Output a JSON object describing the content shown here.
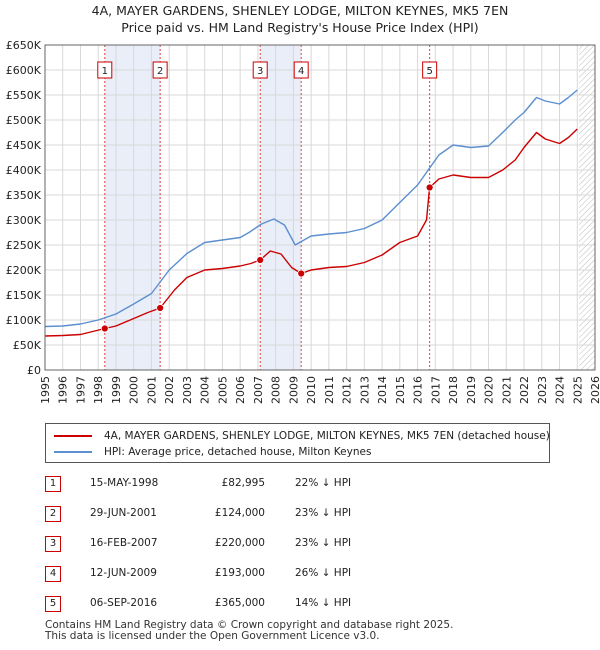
{
  "title_line1": "4A, MAYER GARDENS, SHENLEY LODGE, MILTON KEYNES, MK5 7EN",
  "title_line2": "Price paid vs. HM Land Registry's House Price Index (HPI)",
  "chart_data": {
    "type": "line",
    "title": "4A, MAYER GARDENS, SHENLEY LODGE, MILTON KEYNES, MK5 7EN — Price paid vs. HM Land Registry's House Price Index (HPI)",
    "xlabel": "",
    "ylabel": "",
    "xlim": [
      1995,
      2026
    ],
    "ylim": [
      0,
      650000
    ],
    "y_ticks": [
      0,
      50000,
      100000,
      150000,
      200000,
      250000,
      300000,
      350000,
      400000,
      450000,
      500000,
      550000,
      600000,
      650000
    ],
    "y_tick_labels": [
      "£0",
      "£50K",
      "£100K",
      "£150K",
      "£200K",
      "£250K",
      "£300K",
      "£350K",
      "£400K",
      "£450K",
      "£500K",
      "£550K",
      "£600K",
      "£650K"
    ],
    "x_ticks": [
      1995,
      1996,
      1997,
      1998,
      1999,
      2000,
      2001,
      2002,
      2003,
      2004,
      2005,
      2006,
      2007,
      2008,
      2009,
      2010,
      2011,
      2012,
      2013,
      2014,
      2015,
      2016,
      2017,
      2018,
      2019,
      2020,
      2021,
      2022,
      2023,
      2024,
      2025,
      2026
    ],
    "grid": true,
    "series": [
      {
        "name": "4A, MAYER GARDENS, SHENLEY LODGE, MILTON KEYNES, MK5 7EN (detached house)",
        "color": "#cc0000",
        "x": [
          1995.0,
          1996.0,
          1997.0,
          1997.8,
          1998.37,
          1999.0,
          2000.0,
          2000.8,
          2001.49,
          2002.3,
          2003.0,
          2004.0,
          2005.0,
          2006.0,
          2006.6,
          2007.13,
          2007.7,
          2008.3,
          2008.9,
          2009.44,
          2010.0,
          2011.0,
          2012.0,
          2013.0,
          2014.0,
          2015.0,
          2016.0,
          2016.5,
          2016.68,
          2017.2,
          2018.0,
          2019.0,
          2020.0,
          2020.8,
          2021.5,
          2022.0,
          2022.7,
          2023.2,
          2024.0,
          2024.5,
          2025.0
        ],
        "y": [
          68000,
          69000,
          71000,
          78000,
          82995,
          88000,
          103000,
          115000,
          124000,
          160000,
          185000,
          200000,
          203000,
          208000,
          213000,
          220000,
          238000,
          232000,
          205000,
          193000,
          200000,
          205000,
          207000,
          215000,
          230000,
          255000,
          268000,
          300000,
          365000,
          382000,
          390000,
          385000,
          385000,
          400000,
          420000,
          445000,
          475000,
          462000,
          453000,
          465000,
          482000
        ]
      },
      {
        "name": "HPI: Average price, detached house, Milton Keynes",
        "color": "#5b8fd0",
        "x": [
          1995.0,
          1996.0,
          1997.0,
          1998.0,
          1999.0,
          2000.0,
          2001.0,
          2002.0,
          2003.0,
          2004.0,
          2005.0,
          2006.0,
          2006.5,
          2007.2,
          2007.9,
          2008.5,
          2009.1,
          2009.6,
          2010.0,
          2011.0,
          2012.0,
          2013.0,
          2014.0,
          2015.0,
          2016.0,
          2016.7,
          2017.2,
          2018.0,
          2019.0,
          2020.0,
          2020.8,
          2021.5,
          2022.0,
          2022.7,
          2023.2,
          2024.0,
          2024.5,
          2025.0
        ],
        "y": [
          87000,
          88000,
          92000,
          100000,
          112000,
          132000,
          153000,
          200000,
          233000,
          255000,
          260000,
          265000,
          275000,
          292000,
          302000,
          290000,
          250000,
          260000,
          268000,
          272000,
          275000,
          283000,
          300000,
          335000,
          370000,
          405000,
          430000,
          450000,
          445000,
          448000,
          475000,
          500000,
          515000,
          545000,
          538000,
          532000,
          545000,
          560000
        ]
      }
    ],
    "sales": [
      {
        "label": "1",
        "date": "15-MAY-1998",
        "x": 1998.37,
        "price": "£82,995",
        "value": 82995,
        "hpi": "22% ↓ HPI"
      },
      {
        "label": "2",
        "date": "29-JUN-2001",
        "x": 2001.49,
        "price": "£124,000",
        "value": 124000,
        "hpi": "23% ↓ HPI"
      },
      {
        "label": "3",
        "date": "16-FEB-2007",
        "x": 2007.13,
        "price": "£220,000",
        "value": 220000,
        "hpi": "23% ↓ HPI"
      },
      {
        "label": "4",
        "date": "12-JUN-2009",
        "x": 2009.44,
        "price": "£193,000",
        "value": 193000,
        "hpi": "26% ↓ HPI"
      },
      {
        "label": "5",
        "date": "06-SEP-2016",
        "x": 2016.68,
        "price": "£365,000",
        "value": 365000,
        "hpi": "14% ↓ HPI"
      }
    ],
    "shaded_regions": [
      {
        "from": 1998.37,
        "to": 2001.49
      },
      {
        "from": 2007.13,
        "to": 2009.44
      }
    ],
    "future_hatch_from": 2025.1
  },
  "legend": {
    "item1": "4A, MAYER GARDENS, SHENLEY LODGE, MILTON KEYNES, MK5 7EN (detached house)",
    "item2": "HPI: Average price, detached house, Milton Keynes",
    "color1": "#cc0000",
    "color2": "#5b8fd0"
  },
  "footer": {
    "line1": "Contains HM Land Registry data © Crown copyright and database right 2025.",
    "line2": "This data is licensed under the Open Government Licence v3.0."
  }
}
